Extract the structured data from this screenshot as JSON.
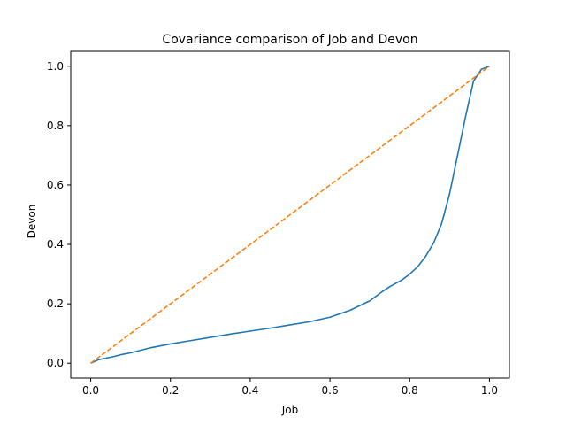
{
  "chart_data": {
    "type": "line",
    "title": "Covariance comparison of Job and Devon",
    "xlabel": "Job",
    "ylabel": "Devon",
    "xlim": [
      -0.05,
      1.05
    ],
    "ylim": [
      -0.05,
      1.05
    ],
    "xticks": [
      0.0,
      0.2,
      0.4,
      0.6,
      0.8,
      1.0
    ],
    "yticks": [
      0.0,
      0.2,
      0.4,
      0.6,
      0.8,
      1.0
    ],
    "xtick_labels": [
      "0.0",
      "0.2",
      "0.4",
      "0.6",
      "0.8",
      "1.0"
    ],
    "ytick_labels": [
      "0.0",
      "0.2",
      "0.4",
      "0.6",
      "0.8",
      "1.0"
    ],
    "grid": false,
    "series": [
      {
        "color": "#1f77b4",
        "style": "solid",
        "x": [
          0.0,
          0.02,
          0.05,
          0.08,
          0.1,
          0.15,
          0.2,
          0.25,
          0.3,
          0.35,
          0.4,
          0.45,
          0.5,
          0.55,
          0.6,
          0.65,
          0.7,
          0.73,
          0.75,
          0.78,
          0.8,
          0.82,
          0.84,
          0.86,
          0.88,
          0.9,
          0.92,
          0.94,
          0.96,
          0.98,
          1.0
        ],
        "y": [
          0.0,
          0.012,
          0.02,
          0.03,
          0.035,
          0.052,
          0.065,
          0.076,
          0.087,
          0.098,
          0.108,
          0.118,
          0.129,
          0.14,
          0.155,
          0.178,
          0.21,
          0.24,
          0.258,
          0.28,
          0.3,
          0.325,
          0.36,
          0.405,
          0.47,
          0.57,
          0.7,
          0.83,
          0.95,
          0.99,
          1.0
        ]
      },
      {
        "color": "#ff7f0e",
        "style": "dashed",
        "x": [
          0.0,
          1.0
        ],
        "y": [
          0.0,
          1.0
        ]
      }
    ]
  }
}
